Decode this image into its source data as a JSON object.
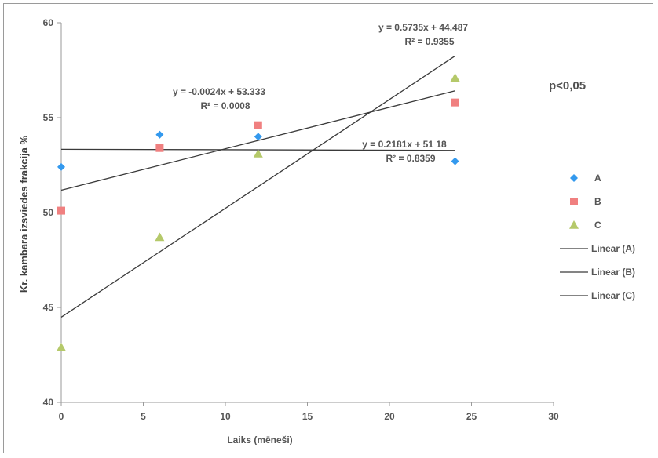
{
  "chart_data": {
    "type": "scatter",
    "xlabel": "Laiks (mēneši)",
    "ylabel": "Kr. kambara izsviedes frakcija %",
    "xlim": [
      0,
      30
    ],
    "ylim": [
      40,
      60
    ],
    "x_ticks": [
      "0",
      "5",
      "10",
      "15",
      "20",
      "25",
      "30"
    ],
    "y_ticks": [
      "40",
      "45",
      "50",
      "55",
      "60"
    ],
    "grid": false,
    "legend_position": "right",
    "annotation": "p<0,05",
    "series": [
      {
        "name": "A",
        "marker": "diamond",
        "color": "#3399ee",
        "x": [
          0,
          6,
          12,
          24
        ],
        "y": [
          52.4,
          54.1,
          54.0,
          52.7
        ]
      },
      {
        "name": "B",
        "marker": "square",
        "color": "#f08080",
        "x": [
          0,
          6,
          12,
          24
        ],
        "y": [
          50.1,
          53.4,
          54.6,
          55.8
        ]
      },
      {
        "name": "C",
        "marker": "triangle",
        "color": "#b5c96a",
        "x": [
          0,
          6,
          12,
          24
        ],
        "y": [
          42.9,
          48.7,
          53.1,
          57.1
        ]
      }
    ],
    "trendlines": [
      {
        "name": "Linear (A)",
        "color": "#3a3a3a",
        "slope": -0.0024,
        "intercept": 53.333,
        "x_range": [
          0,
          24
        ],
        "equation": "y = -0.0024x + 53.333",
        "r2": "R² = 0.0008"
      },
      {
        "name": "Linear (B)",
        "color": "#3a3a3a",
        "slope": 0.2181,
        "intercept": 51.18,
        "x_range": [
          0,
          24
        ],
        "equation": "y = 0.2181x + 51 18",
        "r2": "R² = 0.8359"
      },
      {
        "name": "Linear (C)",
        "color": "#3a3a3a",
        "slope": 0.5735,
        "intercept": 44.487,
        "x_range": [
          0,
          24
        ],
        "equation": "y = 0.5735x + 44.487",
        "r2": "R² = 0.9355"
      }
    ]
  }
}
